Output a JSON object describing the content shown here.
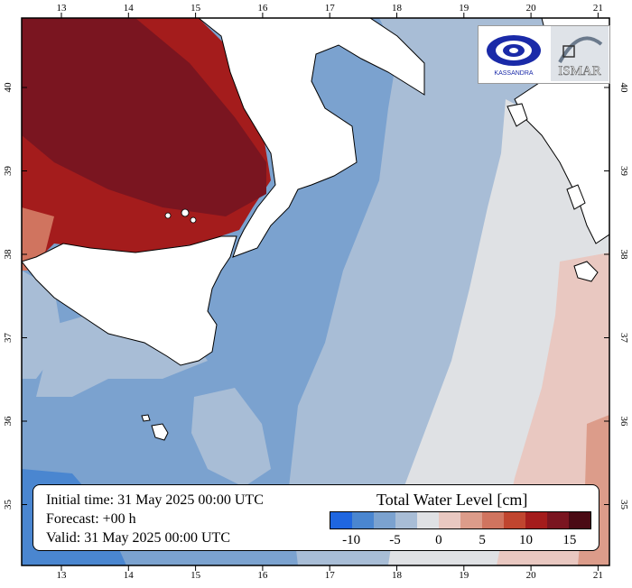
{
  "map": {
    "lon_ticks": [
      "13",
      "14",
      "15",
      "16",
      "17",
      "18",
      "19",
      "20",
      "21"
    ],
    "lat_ticks": [
      "40",
      "39",
      "38",
      "37",
      "36",
      "35"
    ]
  },
  "info": {
    "initial_time": "Initial time: 31 May 2025 00:00 UTC",
    "forecast": "Forecast: +00 h",
    "valid": "Valid: 31 May 2025 00:00 UTC"
  },
  "legend": {
    "title": "Total Water Level [cm]",
    "colors": [
      "#1f66e0",
      "#4a86d0",
      "#7ba2cf",
      "#a8bdd6",
      "#dfe1e4",
      "#e9c8c1",
      "#dc9c8a",
      "#d0745f",
      "#c0452f",
      "#a41c1c",
      "#7a1520",
      "#4a0a14"
    ],
    "tick_labels": [
      "-10",
      "-5",
      "0",
      "5",
      "10",
      "15"
    ]
  },
  "logos": {
    "kassandra_text": "KASSANDRA",
    "ismar_text": "ISMAR"
  }
}
